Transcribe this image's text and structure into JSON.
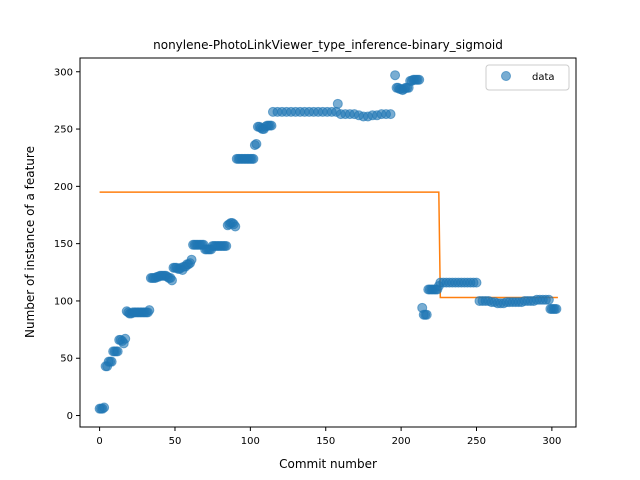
{
  "chart_data": {
    "type": "scatter",
    "title": "nonylene-PhotoLinkViewer_type_inference-binary_sigmoid",
    "xlabel": "Commit number",
    "ylabel": "Number of instance of a feature",
    "xlim": [
      -13,
      316
    ],
    "ylim": [
      -10,
      312
    ],
    "xticks": [
      0,
      50,
      100,
      150,
      200,
      250,
      300
    ],
    "yticks": [
      0,
      50,
      100,
      150,
      200,
      250,
      300
    ],
    "legend": {
      "position": "top-right",
      "label": "data"
    },
    "colors": {
      "points": "#1f77b4",
      "fit": "#ff7f0e"
    },
    "series": [
      {
        "name": "data",
        "type": "scatter",
        "points": [
          [
            0,
            6
          ],
          [
            1,
            6
          ],
          [
            2,
            6
          ],
          [
            3,
            7
          ],
          [
            4,
            43
          ],
          [
            5,
            43
          ],
          [
            6,
            47
          ],
          [
            7,
            47
          ],
          [
            8,
            47
          ],
          [
            9,
            56
          ],
          [
            10,
            56
          ],
          [
            11,
            56
          ],
          [
            12,
            56
          ],
          [
            13,
            66
          ],
          [
            14,
            66
          ],
          [
            15,
            65
          ],
          [
            16,
            63
          ],
          [
            17,
            67
          ],
          [
            18,
            91
          ],
          [
            19,
            90
          ],
          [
            20,
            89
          ],
          [
            21,
            89
          ],
          [
            22,
            90
          ],
          [
            23,
            90
          ],
          [
            24,
            90
          ],
          [
            25,
            90
          ],
          [
            26,
            90
          ],
          [
            27,
            90
          ],
          [
            28,
            90
          ],
          [
            29,
            90
          ],
          [
            30,
            90
          ],
          [
            31,
            90
          ],
          [
            32,
            90
          ],
          [
            33,
            92
          ],
          [
            34,
            120
          ],
          [
            35,
            120
          ],
          [
            36,
            120
          ],
          [
            37,
            120
          ],
          [
            38,
            121
          ],
          [
            39,
            121
          ],
          [
            40,
            122
          ],
          [
            41,
            122
          ],
          [
            42,
            122
          ],
          [
            43,
            122
          ],
          [
            44,
            122
          ],
          [
            45,
            121
          ],
          [
            46,
            120
          ],
          [
            47,
            120
          ],
          [
            48,
            118
          ],
          [
            49,
            129
          ],
          [
            50,
            129
          ],
          [
            51,
            129
          ],
          [
            52,
            128
          ],
          [
            53,
            128
          ],
          [
            54,
            129
          ],
          [
            55,
            127
          ],
          [
            56,
            130
          ],
          [
            57,
            130
          ],
          [
            58,
            132
          ],
          [
            59,
            132
          ],
          [
            60,
            133
          ],
          [
            61,
            136
          ],
          [
            62,
            149
          ],
          [
            63,
            149
          ],
          [
            64,
            149
          ],
          [
            65,
            149
          ],
          [
            66,
            149
          ],
          [
            67,
            149
          ],
          [
            68,
            149
          ],
          [
            69,
            149
          ],
          [
            70,
            145
          ],
          [
            71,
            145
          ],
          [
            72,
            145
          ],
          [
            73,
            145
          ],
          [
            74,
            145
          ],
          [
            75,
            148
          ],
          [
            76,
            148
          ],
          [
            77,
            148
          ],
          [
            78,
            148
          ],
          [
            79,
            148
          ],
          [
            80,
            148
          ],
          [
            81,
            148
          ],
          [
            82,
            148
          ],
          [
            83,
            148
          ],
          [
            84,
            148
          ],
          [
            85,
            166
          ],
          [
            86,
            167
          ],
          [
            87,
            168
          ],
          [
            88,
            168
          ],
          [
            89,
            167
          ],
          [
            90,
            165
          ],
          [
            91,
            224
          ],
          [
            92,
            224
          ],
          [
            93,
            224
          ],
          [
            94,
            224
          ],
          [
            95,
            224
          ],
          [
            96,
            224
          ],
          [
            97,
            224
          ],
          [
            98,
            224
          ],
          [
            99,
            224
          ],
          [
            100,
            224
          ],
          [
            101,
            224
          ],
          [
            102,
            224
          ],
          [
            103,
            236
          ],
          [
            104,
            237
          ],
          [
            105,
            252
          ],
          [
            106,
            252
          ],
          [
            107,
            251
          ],
          [
            108,
            250
          ],
          [
            109,
            250
          ],
          [
            110,
            252
          ],
          [
            111,
            253
          ],
          [
            112,
            253
          ],
          [
            113,
            253
          ],
          [
            114,
            253
          ],
          [
            115,
            265
          ],
          [
            118,
            265
          ],
          [
            121,
            265
          ],
          [
            124,
            265
          ],
          [
            127,
            265
          ],
          [
            130,
            265
          ],
          [
            133,
            265
          ],
          [
            136,
            265
          ],
          [
            139,
            265
          ],
          [
            142,
            265
          ],
          [
            145,
            265
          ],
          [
            148,
            265
          ],
          [
            151,
            265
          ],
          [
            154,
            265
          ],
          [
            157,
            265
          ],
          [
            158,
            272
          ],
          [
            160,
            263
          ],
          [
            163,
            263
          ],
          [
            166,
            263
          ],
          [
            169,
            263
          ],
          [
            172,
            262
          ],
          [
            175,
            261
          ],
          [
            178,
            261
          ],
          [
            181,
            262
          ],
          [
            184,
            262
          ],
          [
            187,
            263
          ],
          [
            190,
            263
          ],
          [
            193,
            263
          ],
          [
            196,
            297
          ],
          [
            197,
            286
          ],
          [
            198,
            286
          ],
          [
            199,
            285
          ],
          [
            200,
            285
          ],
          [
            201,
            284
          ],
          [
            202,
            285
          ],
          [
            203,
            286
          ],
          [
            204,
            286
          ],
          [
            205,
            286
          ],
          [
            206,
            292
          ],
          [
            207,
            292
          ],
          [
            208,
            293
          ],
          [
            209,
            293
          ],
          [
            210,
            293
          ],
          [
            211,
            293
          ],
          [
            212,
            293
          ],
          [
            214,
            94
          ],
          [
            215,
            88
          ],
          [
            216,
            88
          ],
          [
            217,
            88
          ],
          [
            218,
            110
          ],
          [
            219,
            110
          ],
          [
            220,
            110
          ],
          [
            221,
            110
          ],
          [
            222,
            110
          ],
          [
            223,
            110
          ],
          [
            224,
            110
          ],
          [
            225,
            113
          ],
          [
            226,
            116
          ],
          [
            228,
            116
          ],
          [
            230,
            116
          ],
          [
            232,
            116
          ],
          [
            234,
            116
          ],
          [
            236,
            116
          ],
          [
            238,
            116
          ],
          [
            240,
            116
          ],
          [
            242,
            116
          ],
          [
            244,
            116
          ],
          [
            246,
            116
          ],
          [
            248,
            116
          ],
          [
            250,
            116
          ],
          [
            252,
            100
          ],
          [
            254,
            100
          ],
          [
            256,
            100
          ],
          [
            258,
            100
          ],
          [
            260,
            99
          ],
          [
            262,
            99
          ],
          [
            264,
            98
          ],
          [
            266,
            98
          ],
          [
            268,
            98
          ],
          [
            270,
            99
          ],
          [
            272,
            99
          ],
          [
            274,
            99
          ],
          [
            276,
            99
          ],
          [
            278,
            99
          ],
          [
            280,
            99
          ],
          [
            282,
            100
          ],
          [
            284,
            100
          ],
          [
            286,
            100
          ],
          [
            288,
            100
          ],
          [
            290,
            101
          ],
          [
            292,
            101
          ],
          [
            294,
            101
          ],
          [
            296,
            101
          ],
          [
            298,
            101
          ],
          [
            299,
            93
          ],
          [
            300,
            93
          ],
          [
            301,
            93
          ],
          [
            302,
            93
          ],
          [
            303,
            93
          ]
        ]
      },
      {
        "type": "line",
        "points": [
          [
            0,
            195
          ],
          [
            225,
            195
          ],
          [
            226,
            103
          ],
          [
            304,
            103
          ]
        ]
      }
    ]
  }
}
